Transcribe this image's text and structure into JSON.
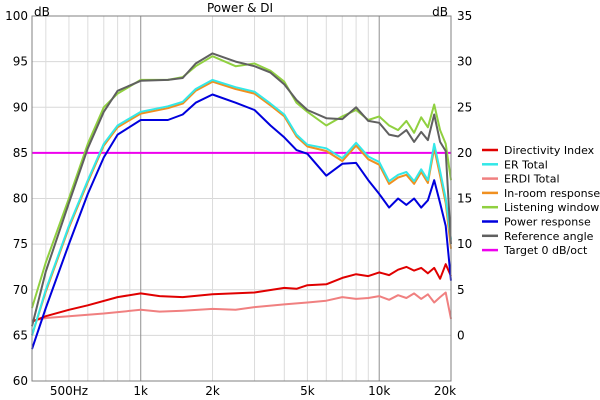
{
  "chart_data": {
    "type": "line",
    "title": "Power & DI",
    "left_unit": "dB",
    "right_unit": "dB",
    "x_scale": "log",
    "x_range": [
      350,
      20000
    ],
    "x_ticks": [
      {
        "value": 500,
        "label": "500Hz"
      },
      {
        "value": 1000,
        "label": "1k"
      },
      {
        "value": 2000,
        "label": "2k"
      },
      {
        "value": 5000,
        "label": "5k"
      },
      {
        "value": 10000,
        "label": "10k"
      },
      {
        "value": 20000,
        "label": "20k"
      }
    ],
    "y_left": {
      "range": [
        60,
        100
      ],
      "ticks": [
        60,
        65,
        70,
        75,
        80,
        85,
        90,
        95,
        100
      ]
    },
    "y_right": {
      "range": [
        -5,
        35
      ],
      "ticks": [
        0,
        5,
        10,
        15,
        20,
        25,
        30,
        35
      ]
    },
    "grid": true,
    "legend_position": "right",
    "series": [
      {
        "name": "Directivity Index",
        "color": "#e00000",
        "axis": "right",
        "points": [
          [
            350,
            1.5
          ],
          [
            400,
            2.1
          ],
          [
            500,
            2.8
          ],
          [
            600,
            3.3
          ],
          [
            800,
            4.2
          ],
          [
            1000,
            4.6
          ],
          [
            1200,
            4.3
          ],
          [
            1500,
            4.2
          ],
          [
            2000,
            4.5
          ],
          [
            3000,
            4.7
          ],
          [
            4000,
            5.2
          ],
          [
            4500,
            5.1
          ],
          [
            5000,
            5.5
          ],
          [
            6000,
            5.6
          ],
          [
            7000,
            6.3
          ],
          [
            8000,
            6.7
          ],
          [
            9000,
            6.5
          ],
          [
            10000,
            6.9
          ],
          [
            11000,
            6.6
          ],
          [
            12000,
            7.2
          ],
          [
            13000,
            7.5
          ],
          [
            14000,
            7.1
          ],
          [
            15000,
            7.4
          ],
          [
            16000,
            6.8
          ],
          [
            17000,
            7.4
          ],
          [
            18000,
            6.2
          ],
          [
            19000,
            7.8
          ],
          [
            20000,
            6.5
          ]
        ]
      },
      {
        "name": "ER Total",
        "color": "#33e8e8",
        "axis": "left",
        "points": [
          [
            350,
            65
          ],
          [
            400,
            70
          ],
          [
            500,
            77
          ],
          [
            600,
            82
          ],
          [
            700,
            86
          ],
          [
            800,
            88
          ],
          [
            1000,
            89.5
          ],
          [
            1300,
            90.1
          ],
          [
            1500,
            90.6
          ],
          [
            1700,
            92
          ],
          [
            2000,
            93
          ],
          [
            2500,
            92.2
          ],
          [
            3000,
            91.7
          ],
          [
            3500,
            90.4
          ],
          [
            4000,
            89.2
          ],
          [
            4500,
            87
          ],
          [
            5000,
            85.9
          ],
          [
            6000,
            85.5
          ],
          [
            7000,
            84.4
          ],
          [
            8000,
            86.1
          ],
          [
            9000,
            84.6
          ],
          [
            10000,
            84
          ],
          [
            11000,
            81.9
          ],
          [
            12000,
            82.6
          ],
          [
            13000,
            82.9
          ],
          [
            14000,
            81.9
          ],
          [
            15000,
            83.2
          ],
          [
            16000,
            82
          ],
          [
            17000,
            86
          ],
          [
            18000,
            83
          ],
          [
            19000,
            80
          ],
          [
            20000,
            75.5
          ]
        ]
      },
      {
        "name": "ERDI Total",
        "color": "#f08080",
        "axis": "right",
        "points": [
          [
            350,
            1.6
          ],
          [
            400,
            1.9
          ],
          [
            500,
            2.1
          ],
          [
            700,
            2.4
          ],
          [
            1000,
            2.8
          ],
          [
            1200,
            2.6
          ],
          [
            1500,
            2.7
          ],
          [
            2000,
            2.9
          ],
          [
            2500,
            2.8
          ],
          [
            3000,
            3.1
          ],
          [
            4000,
            3.4
          ],
          [
            5000,
            3.6
          ],
          [
            6000,
            3.8
          ],
          [
            7000,
            4.2
          ],
          [
            8000,
            4.0
          ],
          [
            9000,
            4.1
          ],
          [
            10000,
            4.3
          ],
          [
            11000,
            3.9
          ],
          [
            12000,
            4.4
          ],
          [
            13000,
            4.1
          ],
          [
            14000,
            4.6
          ],
          [
            15000,
            4.0
          ],
          [
            16000,
            4.5
          ],
          [
            17000,
            3.6
          ],
          [
            18000,
            4.2
          ],
          [
            19000,
            4.7
          ],
          [
            20000,
            1.8
          ]
        ]
      },
      {
        "name": "In-room response",
        "color": "#f09020",
        "axis": "left",
        "points": [
          [
            350,
            65
          ],
          [
            400,
            69.8
          ],
          [
            500,
            76.8
          ],
          [
            600,
            81.8
          ],
          [
            700,
            85.8
          ],
          [
            800,
            87.8
          ],
          [
            1000,
            89.3
          ],
          [
            1300,
            89.9
          ],
          [
            1500,
            90.4
          ],
          [
            1700,
            91.8
          ],
          [
            2000,
            92.8
          ],
          [
            2500,
            92
          ],
          [
            3000,
            91.5
          ],
          [
            3500,
            90.2
          ],
          [
            4000,
            89
          ],
          [
            4500,
            86.8
          ],
          [
            5000,
            85.7
          ],
          [
            6000,
            85.2
          ],
          [
            7000,
            84.1
          ],
          [
            8000,
            85.8
          ],
          [
            9000,
            84.3
          ],
          [
            10000,
            83.7
          ],
          [
            11000,
            81.6
          ],
          [
            12000,
            82.3
          ],
          [
            13000,
            82.6
          ],
          [
            14000,
            81.6
          ],
          [
            15000,
            82.9
          ],
          [
            16000,
            81.7
          ],
          [
            17000,
            85.5
          ],
          [
            18000,
            82.5
          ],
          [
            19000,
            79.5
          ],
          [
            20000,
            74.5
          ]
        ]
      },
      {
        "name": "Listening window",
        "color": "#90d040",
        "axis": "left",
        "points": [
          [
            350,
            68
          ],
          [
            400,
            73
          ],
          [
            500,
            80
          ],
          [
            600,
            86
          ],
          [
            700,
            90
          ],
          [
            800,
            91.5
          ],
          [
            1000,
            93
          ],
          [
            1300,
            93
          ],
          [
            1500,
            93.3
          ],
          [
            1700,
            94.5
          ],
          [
            2000,
            95.6
          ],
          [
            2500,
            94.5
          ],
          [
            3000,
            94.8
          ],
          [
            3500,
            94
          ],
          [
            4000,
            92.8
          ],
          [
            4500,
            90.5
          ],
          [
            5000,
            89.5
          ],
          [
            6000,
            88
          ],
          [
            7000,
            89
          ],
          [
            8000,
            89.7
          ],
          [
            9000,
            88.6
          ],
          [
            10000,
            89
          ],
          [
            11000,
            88
          ],
          [
            12000,
            87.5
          ],
          [
            13000,
            88.5
          ],
          [
            14000,
            87.2
          ],
          [
            15000,
            88.9
          ],
          [
            16000,
            87.8
          ],
          [
            17000,
            90.3
          ],
          [
            18000,
            87.5
          ],
          [
            19000,
            86
          ],
          [
            20000,
            82
          ]
        ]
      },
      {
        "name": "Power response",
        "color": "#0000dd",
        "axis": "left",
        "points": [
          [
            350,
            63.5
          ],
          [
            400,
            68
          ],
          [
            500,
            75
          ],
          [
            600,
            80.5
          ],
          [
            700,
            84.5
          ],
          [
            800,
            87
          ],
          [
            1000,
            88.6
          ],
          [
            1300,
            88.6
          ],
          [
            1500,
            89.2
          ],
          [
            1700,
            90.5
          ],
          [
            2000,
            91.4
          ],
          [
            2500,
            90.5
          ],
          [
            3000,
            89.7
          ],
          [
            3500,
            88
          ],
          [
            4000,
            86.7
          ],
          [
            4500,
            85.3
          ],
          [
            5000,
            84.9
          ],
          [
            6000,
            82.5
          ],
          [
            7000,
            83.8
          ],
          [
            8000,
            83.9
          ],
          [
            9000,
            82
          ],
          [
            10000,
            80.5
          ],
          [
            11000,
            79
          ],
          [
            12000,
            80
          ],
          [
            13000,
            79.3
          ],
          [
            14000,
            80
          ],
          [
            15000,
            79
          ],
          [
            16000,
            79.8
          ],
          [
            17000,
            82
          ],
          [
            18000,
            79.5
          ],
          [
            19000,
            77
          ],
          [
            20000,
            71
          ]
        ]
      },
      {
        "name": "Reference angle",
        "color": "#606060",
        "axis": "left",
        "points": [
          [
            350,
            66
          ],
          [
            400,
            72
          ],
          [
            500,
            79.5
          ],
          [
            600,
            85.5
          ],
          [
            700,
            89.5
          ],
          [
            800,
            91.8
          ],
          [
            1000,
            92.9
          ],
          [
            1300,
            93
          ],
          [
            1500,
            93.2
          ],
          [
            1700,
            94.8
          ],
          [
            2000,
            95.9
          ],
          [
            2500,
            95
          ],
          [
            3000,
            94.5
          ],
          [
            3500,
            93.8
          ],
          [
            4000,
            92.5
          ],
          [
            4500,
            90.8
          ],
          [
            5000,
            89.7
          ],
          [
            6000,
            88.8
          ],
          [
            7000,
            88.7
          ],
          [
            8000,
            90
          ],
          [
            9000,
            88.5
          ],
          [
            10000,
            88.3
          ],
          [
            11000,
            87
          ],
          [
            12000,
            86.8
          ],
          [
            13000,
            87.5
          ],
          [
            14000,
            86.2
          ],
          [
            15000,
            87.3
          ],
          [
            16000,
            86.4
          ],
          [
            17000,
            89.2
          ],
          [
            18000,
            86.2
          ],
          [
            19000,
            85.2
          ],
          [
            20000,
            75
          ]
        ]
      },
      {
        "name": "Target 0 dB/oct",
        "color": "#ee00ee",
        "axis": "left",
        "points": [
          [
            350,
            85
          ],
          [
            20000,
            85
          ]
        ]
      }
    ]
  }
}
